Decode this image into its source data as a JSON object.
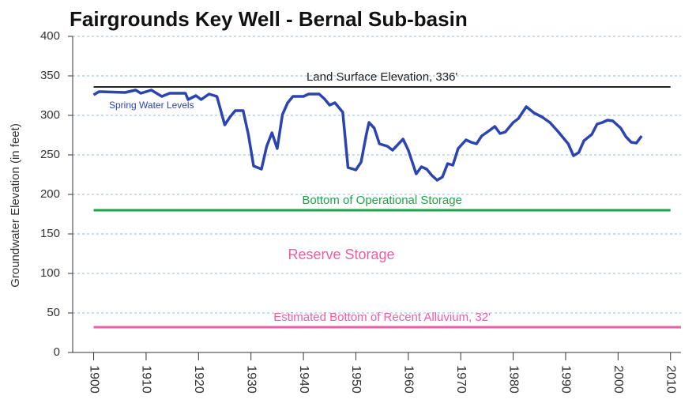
{
  "chart_data": {
    "type": "line",
    "title": "Fairgrounds Key Well  -  Bernal Sub-basin",
    "ylabel": "Groundwater Elevation (in feet)",
    "x": [
      1900,
      1901,
      1906,
      1908,
      1909,
      1911,
      1913,
      1914.5,
      1917.5,
      1918,
      1919.5,
      1920.5,
      1922,
      1923.5,
      1925,
      1926,
      1927,
      1928.5,
      1929.5,
      1930.5,
      1932,
      1933,
      1934,
      1935,
      1936,
      1937,
      1938,
      1940,
      1941,
      1943,
      1944,
      1945,
      1946,
      1947.5,
      1948.5,
      1950,
      1951,
      1952,
      1952.5,
      1953.5,
      1954.5,
      1956,
      1957,
      1958,
      1959,
      1960,
      1960.5,
      1961.5,
      1962.5,
      1963.5,
      1964.5,
      1965.5,
      1966.5,
      1967.5,
      1968.5,
      1969.5,
      1971,
      1972,
      1973,
      1974,
      1975.5,
      1976.5,
      1977.5,
      1978.5,
      1980,
      1981,
      1982.5,
      1984,
      1985.5,
      1987,
      1988.5,
      1990.5,
      1991.5,
      1992.5,
      1993.5,
      1995,
      1996,
      1997,
      1998,
      1999,
      2000.5,
      2001.5,
      2002.5,
      2003.5,
      2004.5
    ],
    "series": [
      {
        "name": "Spring Water Levels",
        "color": "#2b44b0",
        "values": [
          326,
          330,
          329,
          332,
          328,
          332,
          324,
          328,
          328,
          320,
          325,
          320,
          327,
          324,
          288,
          298,
          306,
          306,
          276,
          236,
          232,
          261,
          278,
          258,
          301,
          316,
          324,
          324,
          327,
          327,
          321,
          313,
          316,
          304,
          234,
          231,
          241,
          276,
          291,
          284,
          264,
          261,
          256,
          263,
          270,
          256,
          246,
          226,
          235,
          232,
          224,
          218,
          222,
          239,
          237,
          258,
          269,
          266,
          264,
          274,
          281,
          286,
          277,
          279,
          291,
          296,
          311,
          303,
          298,
          291,
          280,
          264,
          249,
          253,
          268,
          276,
          289,
          291,
          294,
          293,
          284,
          273,
          266,
          265,
          274
        ]
      }
    ],
    "reference_lines": [
      {
        "label": "Land Surface Elevation, 336'",
        "value": 336,
        "color": "#222222"
      },
      {
        "label": "Bottom of Operational Storage",
        "value": 180,
        "color": "#1fa34a"
      },
      {
        "label": "Estimated Bottom of Recent Alluvium, 32'",
        "value": 32,
        "color": "#ec5ea4"
      }
    ],
    "region_label": "Reserve Storage",
    "xlim": [
      1896,
      2012
    ],
    "xticks": [
      1900,
      1910,
      1920,
      1930,
      1940,
      1950,
      1960,
      1970,
      1980,
      1990,
      2000,
      2010
    ],
    "ylim": [
      0,
      400
    ],
    "yticks": [
      0,
      50,
      100,
      150,
      200,
      250,
      300,
      350,
      400
    ],
    "grid": true
  }
}
